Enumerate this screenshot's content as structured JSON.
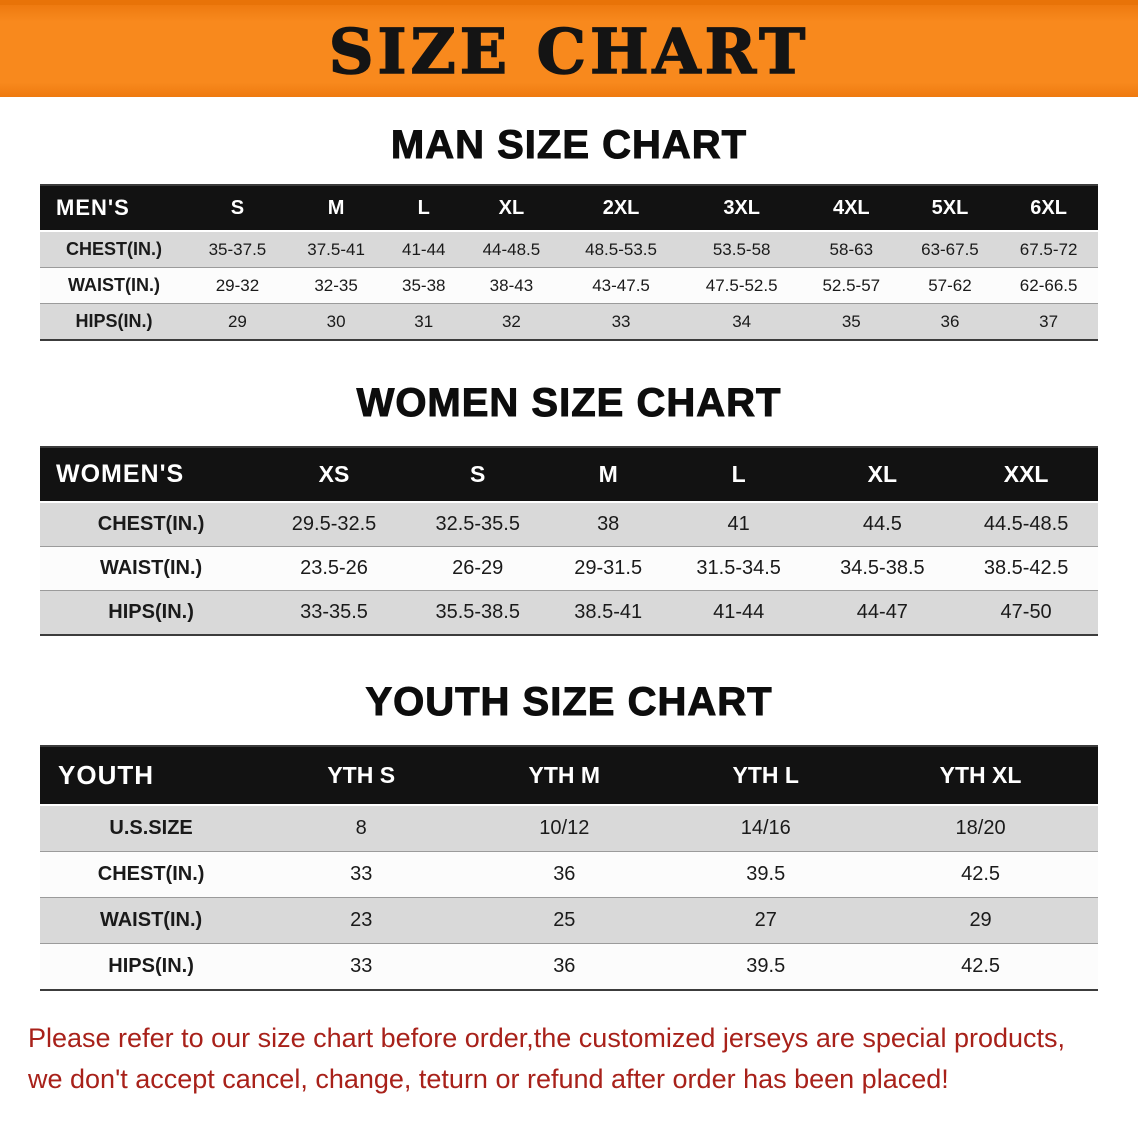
{
  "banner": {
    "title": "SIZE CHART",
    "bg_color": "#f8891d",
    "text_color": "#141414"
  },
  "sections": [
    {
      "id": "men",
      "heading": "MAN SIZE CHART",
      "table": {
        "header_label": "MEN'S",
        "columns": [
          "S",
          "M",
          "L",
          "XL",
          "2XL",
          "3XL",
          "4XL",
          "5XL",
          "6XL"
        ],
        "rows": [
          {
            "label": "CHEST(IN.)",
            "values": [
              "35-37.5",
              "37.5-41",
              "41-44",
              "44-48.5",
              "48.5-53.5",
              "53.5-58",
              "58-63",
              "63-67.5",
              "67.5-72"
            ]
          },
          {
            "label": "WAIST(IN.)",
            "values": [
              "29-32",
              "32-35",
              "35-38",
              "38-43",
              "43-47.5",
              "47.5-52.5",
              "52.5-57",
              "57-62",
              "62-66.5"
            ]
          },
          {
            "label": "HIPS(IN.)",
            "values": [
              "29",
              "30",
              "31",
              "32",
              "33",
              "34",
              "35",
              "36",
              "37"
            ]
          }
        ]
      }
    },
    {
      "id": "women",
      "heading": "WOMEN SIZE CHART",
      "table": {
        "header_label": "WOMEN'S",
        "columns": [
          "XS",
          "S",
          "M",
          "L",
          "XL",
          "XXL"
        ],
        "rows": [
          {
            "label": "CHEST(IN.)",
            "values": [
              "29.5-32.5",
              "32.5-35.5",
              "38",
              "41",
              "44.5",
              "44.5-48.5"
            ]
          },
          {
            "label": "WAIST(IN.)",
            "values": [
              "23.5-26",
              "26-29",
              "29-31.5",
              "31.5-34.5",
              "34.5-38.5",
              "38.5-42.5"
            ]
          },
          {
            "label": "HIPS(IN.)",
            "values": [
              "33-35.5",
              "35.5-38.5",
              "38.5-41",
              "41-44",
              "44-47",
              "47-50"
            ]
          }
        ]
      }
    },
    {
      "id": "youth",
      "heading": "YOUTH SIZE CHART",
      "table": {
        "header_label": "YOUTH",
        "columns": [
          "YTH S",
          "YTH M",
          "YTH L",
          "YTH XL"
        ],
        "rows": [
          {
            "label": "U.S.SIZE",
            "values": [
              "8",
              "10/12",
              "14/16",
              "18/20"
            ]
          },
          {
            "label": "CHEST(IN.)",
            "values": [
              "33",
              "36",
              "39.5",
              "42.5"
            ]
          },
          {
            "label": "WAIST(IN.)",
            "values": [
              "23",
              "25",
              "27",
              "29"
            ]
          },
          {
            "label": "HIPS(IN.)",
            "values": [
              "33",
              "36",
              "39.5",
              "42.5"
            ]
          }
        ]
      }
    }
  ],
  "footer": {
    "line1": "Please refer to our size chart before order,the customized jerseys are special products,",
    "line2": "we don't accept cancel, change, teturn or refund after order has been placed!",
    "text_color": "#a8211a"
  },
  "colors": {
    "table_header_bg": "#121212",
    "table_header_text": "#ffffff",
    "row_gray": "#d9d9d9",
    "row_white": "#fcfcfc"
  }
}
